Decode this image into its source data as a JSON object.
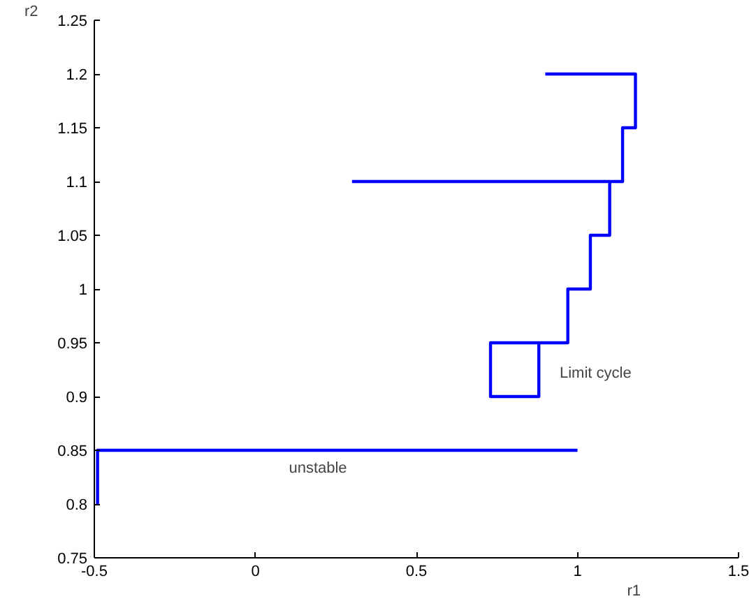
{
  "chart_data": {
    "type": "line",
    "xlabel": "r1",
    "ylabel": "r2",
    "xlim": [
      -0.5,
      1.5
    ],
    "ylim": [
      0.75,
      1.25
    ],
    "xticks": [
      -0.5,
      0,
      0.5,
      1,
      1.5
    ],
    "yticks": [
      0.75,
      0.8,
      0.85,
      0.9,
      0.95,
      1,
      1.05,
      1.1,
      1.15,
      1.2,
      1.25
    ],
    "grid": false,
    "marker": "none",
    "line_style": "solid",
    "series": [
      {
        "color": "#0000ff",
        "x": [
          0.9,
          1.18,
          1.18,
          1.14,
          1.14
        ],
        "values": [
          1.2,
          1.2,
          1.15,
          1.15,
          1.1
        ]
      },
      {
        "color": "#0000ff",
        "x": [
          0.3,
          1.14,
          1.1,
          1.1,
          1.04,
          1.04,
          0.97,
          0.97,
          0.88,
          0.88,
          0.73,
          0.73,
          0.88
        ],
        "values": [
          1.1,
          1.1,
          1.1,
          1.05,
          1.05,
          1.0,
          1.0,
          0.95,
          0.95,
          0.9,
          0.9,
          0.95,
          0.95
        ]
      },
      {
        "color": "#0000ff",
        "x": [
          1.0,
          -0.49,
          -0.49
        ],
        "values": [
          0.85,
          0.85,
          0.8
        ]
      }
    ],
    "annotations": [
      "Limit cycle",
      "unstable"
    ]
  }
}
